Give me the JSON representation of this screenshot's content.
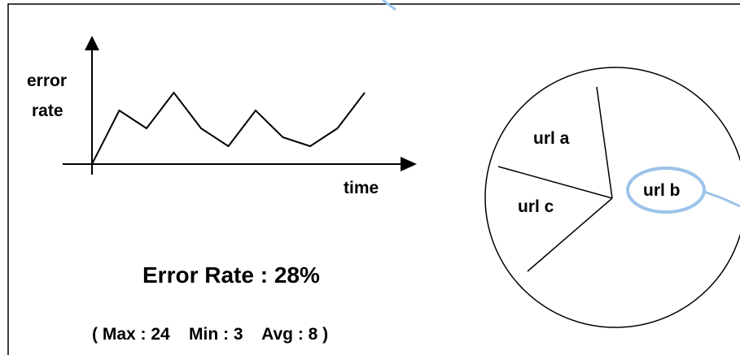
{
  "line_chart": {
    "ylabel_line1": "error",
    "ylabel_line2": "rate",
    "xlabel": "time",
    "x": [
      0,
      1,
      2,
      3,
      4,
      5,
      6,
      7,
      8,
      9,
      10
    ],
    "y": [
      0,
      3,
      2,
      4,
      2,
      1,
      3,
      1.5,
      1,
      2,
      4
    ]
  },
  "summary": {
    "title": "Error Rate : 28%",
    "stats": "( Max : 24    Min : 3    Avg : 8 )"
  },
  "pie": {
    "slice_a_label": "url a",
    "slice_b_label": "url b",
    "slice_c_label": "url c",
    "highlight_color": "#9cc3ea"
  }
}
